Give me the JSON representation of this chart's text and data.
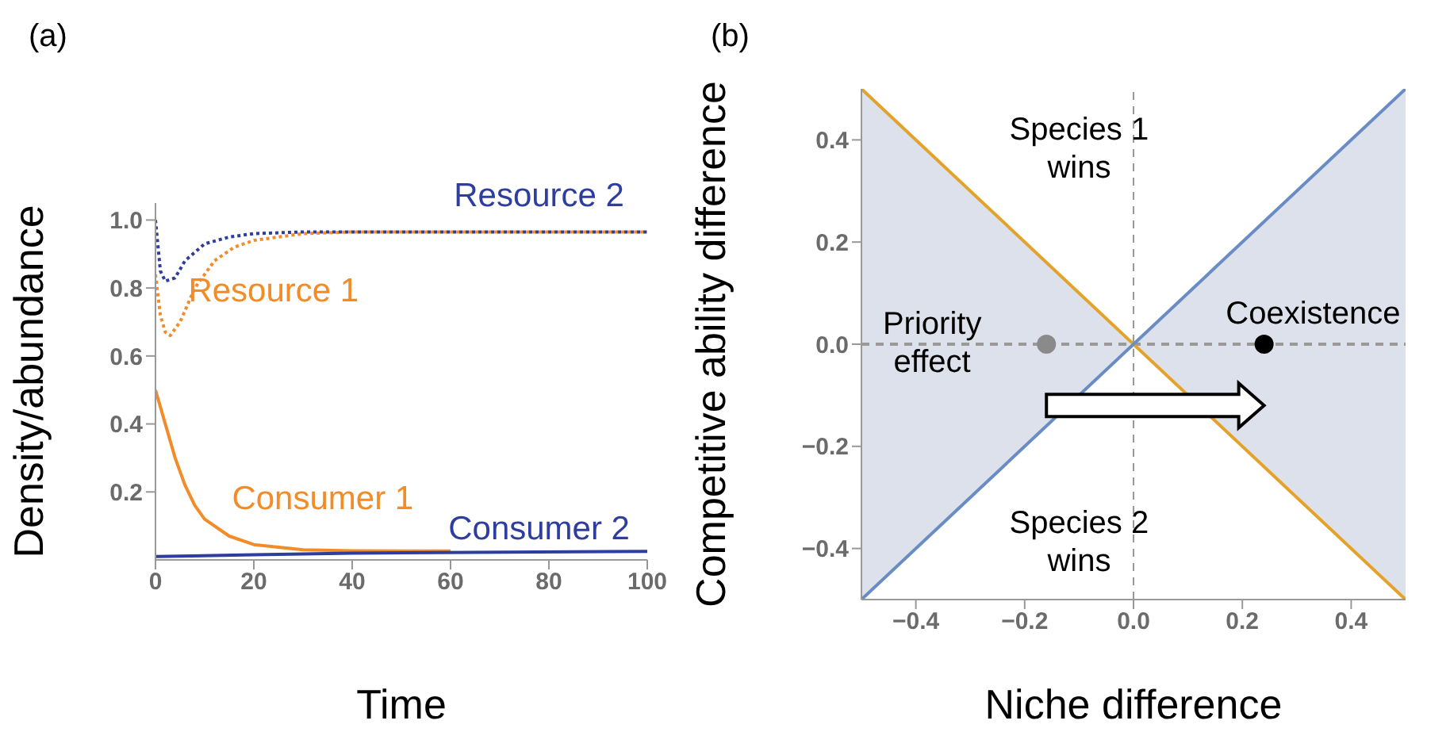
{
  "chart_data": [
    {
      "type": "line",
      "title": "(a)",
      "xlabel": "Time",
      "ylabel": "Density/abundance",
      "xlim": [
        0,
        100
      ],
      "xticks": [
        0,
        20,
        40,
        60,
        80,
        100
      ],
      "ylim": [
        0,
        1.05
      ],
      "yticks": [
        0.2,
        0.4,
        0.6,
        0.8,
        {
          "value": 1,
          "label": "1.0"
        }
      ],
      "series": [
        {
          "name": "Resource 2",
          "color": "#2e3e9e",
          "line_style": "dotted",
          "x": [
            0,
            1,
            2,
            4,
            6,
            10,
            15,
            20,
            30,
            100
          ],
          "values": [
            1.0,
            0.85,
            0.82,
            0.83,
            0.88,
            0.93,
            0.95,
            0.96,
            0.965,
            0.965
          ]
        },
        {
          "name": "Resource 1",
          "color": "#f28c28",
          "line_style": "dotted",
          "x": [
            0,
            1,
            2,
            3,
            5,
            8,
            12,
            16,
            20,
            30,
            40,
            100
          ],
          "values": [
            0.84,
            0.72,
            0.67,
            0.66,
            0.7,
            0.8,
            0.88,
            0.92,
            0.94,
            0.96,
            0.965,
            0.965
          ]
        },
        {
          "name": "Consumer 1",
          "color": "#f28c28",
          "line_style": "solid",
          "x": [
            0,
            2,
            4,
            6,
            8,
            10,
            15,
            20,
            30,
            40,
            60
          ],
          "values": [
            0.5,
            0.4,
            0.3,
            0.22,
            0.16,
            0.12,
            0.07,
            0.045,
            0.03,
            0.027,
            0.026
          ]
        },
        {
          "name": "Consumer 2",
          "color": "#2e3e9e",
          "line_style": "solid",
          "x": [
            0,
            20,
            40,
            100
          ],
          "values": [
            0.01,
            0.015,
            0.02,
            0.025
          ]
        }
      ]
    },
    {
      "type": "line",
      "title": "(b)",
      "xlabel": "Niche difference",
      "ylabel": "Competitive ability difference",
      "xlim": [
        -0.5,
        0.5
      ],
      "xticks": [
        -0.4,
        -0.2,
        {
          "value": 0,
          "label": "0.0"
        },
        0.2,
        0.4
      ],
      "ylim": [
        -0.5,
        0.5
      ],
      "yticks": [
        -0.4,
        -0.2,
        {
          "value": 0,
          "label": "0.0"
        },
        0.2,
        0.4
      ],
      "series": [
        {
          "color": "#999999",
          "line_style": "dashed",
          "x": [
            -0.5,
            0,
            0.5
          ],
          "values": [
            0,
            0,
            0
          ],
          "lower": [
            -0.5,
            0,
            -0.5
          ],
          "upper": [
            0.5,
            0,
            0.5
          ]
        },
        {
          "color": "#e3a32a",
          "line_style": "solid",
          "x": [
            -0.5,
            0.5
          ],
          "values": [
            0.5,
            -0.5
          ]
        },
        {
          "color": "#6a8cc4",
          "line_style": "solid",
          "x": [
            -0.5,
            0.5
          ],
          "values": [
            -0.5,
            0.5
          ]
        },
        {
          "type": "scatter",
          "marker": "circle",
          "colors": [
            "#8a8a8a",
            "#000000"
          ],
          "x": [
            -0.16,
            0.24
          ],
          "values": [
            0,
            0
          ]
        }
      ],
      "ref_lines": [
        {
          "axis": "x",
          "value": 0,
          "color": "#999999",
          "line_style": "dashed"
        }
      ],
      "annotations": [
        "Species 1\nwins",
        "Species 2\nwins",
        "Priority\neffect",
        "Coexistence"
      ]
    }
  ]
}
